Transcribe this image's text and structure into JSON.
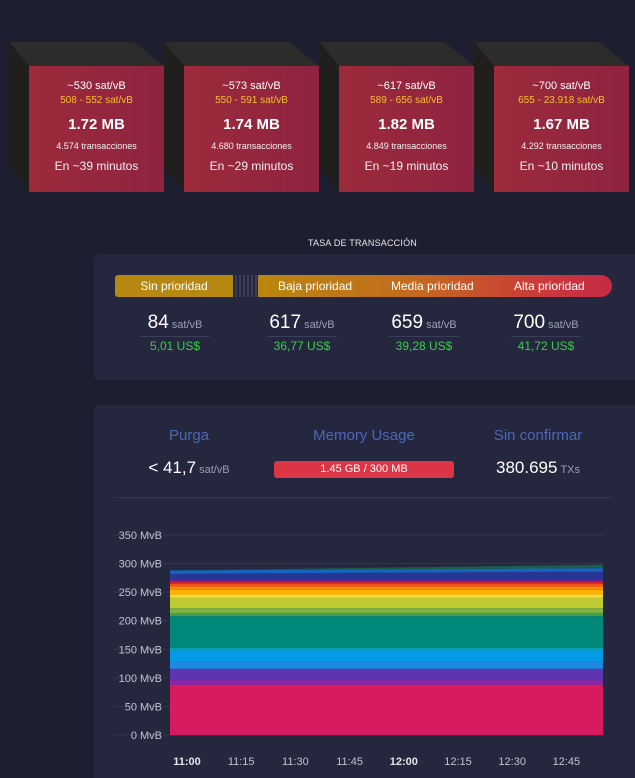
{
  "blocks": [
    {
      "fee": "~530 sat/vB",
      "span": "508 - 552 sat/vB",
      "size": "1.72 MB",
      "tx": "4.574 transacciones",
      "eta": "En ~39 minutos"
    },
    {
      "fee": "~573 sat/vB",
      "span": "550 - 591 sat/vB",
      "size": "1.74 MB",
      "tx": "4.680 transacciones",
      "eta": "En ~29 minutos"
    },
    {
      "fee": "~617 sat/vB",
      "span": "589 - 656 sat/vB",
      "size": "1.82 MB",
      "tx": "4.849 transacciones",
      "eta": "En ~19 minutos"
    },
    {
      "fee": "~700 sat/vB",
      "span": "655 - 23.918 sat/vB",
      "size": "1.67 MB",
      "tx": "4.292 transacciones",
      "eta": "En ~10 minutos"
    }
  ],
  "fees": {
    "title": "TASA DE TRANSACCIÓN",
    "labels": {
      "none": "Sin prioridad",
      "low": "Baja prioridad",
      "medium": "Media prioridad",
      "high": "Alta prioridad"
    },
    "unit": "sat/vB",
    "values": [
      {
        "value": "84",
        "usd": "5,01 US$"
      },
      {
        "value": "617",
        "usd": "36,77 US$"
      },
      {
        "value": "659",
        "usd": "39,28 US$"
      },
      {
        "value": "700",
        "usd": "41,72 US$"
      }
    ]
  },
  "mempool": {
    "purge_label": "Purga",
    "purge_value": "< 41,7",
    "purge_unit": "sat/vB",
    "memory_label": "Memory Usage",
    "memory_value": "1.45 GB / 300 MB",
    "memory_fraction": 1.0,
    "unconfirmed_label": "Sin confirmar",
    "unconfirmed_value": "380.695",
    "unconfirmed_unit": "TXs",
    "colors": {
      "accent_label": "#4a68b9",
      "memory_bar": "#dc3545",
      "usd": "#3bcc49"
    }
  },
  "chart_data": {
    "type": "area",
    "stacked": true,
    "x": [
      "11:00",
      "11:15",
      "11:30",
      "11:45",
      "12:00",
      "12:15",
      "12:30",
      "12:45"
    ],
    "bold_ticks": [
      "11:00",
      "12:00"
    ],
    "y_ticks": [
      "0 MvB",
      "50 MvB",
      "100 MvB",
      "150 MvB",
      "200 MvB",
      "250 MvB",
      "300 MvB",
      "350 MvB"
    ],
    "ylim": [
      0,
      350
    ],
    "yunit": "MvB",
    "grid": true,
    "series": [
      {
        "color": "#d81b60",
        "start": 88,
        "end": 88
      },
      {
        "color": "#8e24aa",
        "start": 8,
        "end": 8
      },
      {
        "color": "#5e35b1",
        "start": 20,
        "end": 20
      },
      {
        "color": "#1e88e5",
        "start": 12,
        "end": 12
      },
      {
        "color": "#039be5",
        "start": 20,
        "end": 20
      },
      {
        "color": "#00acc1",
        "start": 4,
        "end": 4
      },
      {
        "color": "#00897b",
        "start": 56,
        "end": 56
      },
      {
        "color": "#43a047",
        "start": 5,
        "end": 5
      },
      {
        "color": "#7cb342",
        "start": 9,
        "end": 9
      },
      {
        "color": "#c0ca33",
        "start": 18,
        "end": 18
      },
      {
        "color": "#fdd835",
        "start": 6,
        "end": 6
      },
      {
        "color": "#ffb300",
        "start": 8,
        "end": 8
      },
      {
        "color": "#fb8c00",
        "start": 6,
        "end": 6
      },
      {
        "color": "#f4511e",
        "start": 5,
        "end": 5
      },
      {
        "color": "#c62828",
        "start": 4,
        "end": 4
      },
      {
        "color": "#6a1b9a",
        "start": 4,
        "end": 4
      },
      {
        "color": "#283593",
        "start": 9,
        "end": 13
      },
      {
        "color": "#1565c0",
        "start": 6,
        "end": 6
      },
      {
        "color": "#1b5e4a",
        "start": 0,
        "end": 6
      }
    ]
  }
}
